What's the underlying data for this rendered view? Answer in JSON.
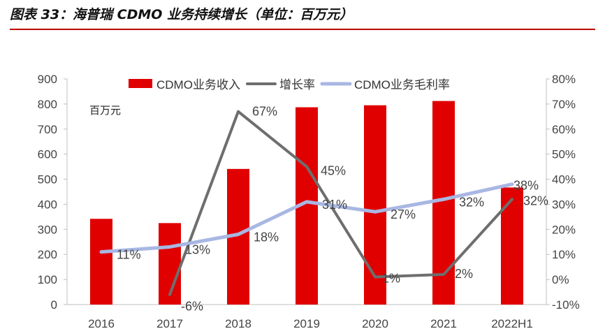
{
  "header": {
    "title": "图表 33：海普瑞 CDMO 业务持续增长（单位：百万元）",
    "rule_color": "#c00000"
  },
  "chart_data": {
    "type": "bar",
    "categories": [
      "2016",
      "2017",
      "2018",
      "2019",
      "2020",
      "2021",
      "2022H1"
    ],
    "unit_label": "百万元",
    "y_left": {
      "min": 0,
      "max": 900,
      "step": 100,
      "ticks": [
        "0",
        "100",
        "200",
        "300",
        "400",
        "500",
        "600",
        "700",
        "800",
        "900"
      ]
    },
    "y_right": {
      "min": -10,
      "max": 80,
      "step": 10,
      "ticks": [
        "-10%",
        "0%",
        "10%",
        "20%",
        "30%",
        "40%",
        "50%",
        "60%",
        "70%",
        "80%"
      ]
    },
    "series": [
      {
        "name": "CDMO业务收入",
        "kind": "bar",
        "axis": "left",
        "color": "#e00000",
        "values": [
          342,
          325,
          541,
          787,
          795,
          812,
          467
        ]
      },
      {
        "name": "增长率",
        "kind": "line",
        "axis": "right",
        "color": "#6e6e6e",
        "values": [
          null,
          -6,
          67,
          45,
          1,
          2,
          32
        ],
        "labels": [
          null,
          "-6%",
          "67%",
          "45%",
          "1%",
          "2%",
          "32%"
        ]
      },
      {
        "name": "CDMO业务毛利率",
        "kind": "line",
        "axis": "right",
        "color": "#a8b7e3",
        "values": [
          11,
          13,
          18,
          31,
          27,
          32,
          38
        ],
        "labels": [
          "11%",
          "13%",
          "18%",
          "31%",
          "27%",
          "32%",
          "38%"
        ]
      }
    ],
    "legend_position": "top-center",
    "grid": false
  }
}
